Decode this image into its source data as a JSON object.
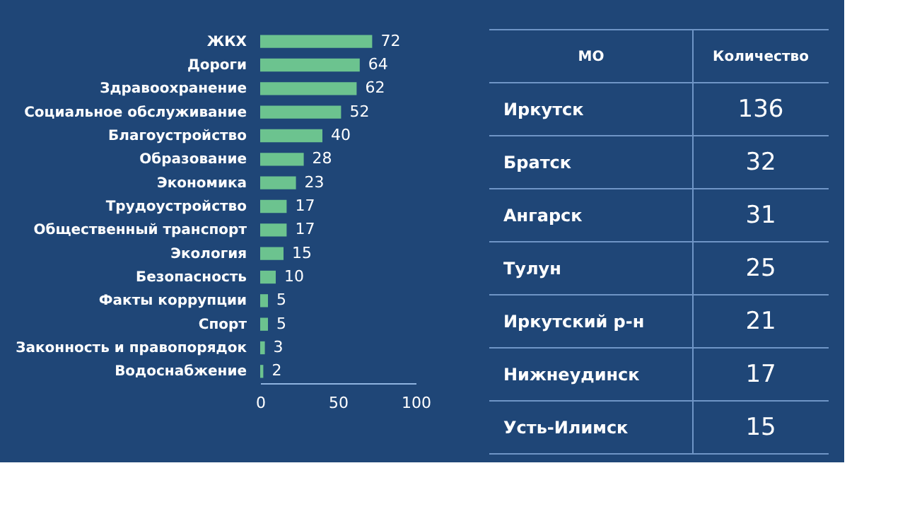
{
  "chart_data": [
    {
      "type": "bar",
      "orientation": "horizontal",
      "categories": [
        "ЖКХ",
        "Дороги",
        "Здравоохранение",
        "Социальное обслуживание",
        "Благоустройство",
        "Образование",
        "Экономика",
        "Трудоустройство",
        "Общественный транспорт",
        "Экология",
        "Безопасность",
        "Факты коррупции",
        "Спорт",
        "Законность и правопорядок",
        "Водоснабжение"
      ],
      "values": [
        72,
        64,
        62,
        52,
        40,
        28,
        23,
        17,
        17,
        15,
        10,
        5,
        5,
        3,
        2
      ],
      "color": "#6cc38f",
      "xlim": [
        0,
        100
      ],
      "xticks": [
        0,
        50,
        100
      ],
      "grid": false,
      "data_labels": true
    },
    {
      "type": "other",
      "xlabel": "МО",
      "ylabel": "Количество",
      "categories": [
        "Иркутск",
        "Братск",
        "Ангарск",
        "Тулун",
        "Иркутский р-н",
        "Нижнеудинск",
        "Усть-Илимск"
      ],
      "values": [
        136,
        32,
        31,
        25,
        21,
        17,
        15
      ],
      "data_labels": true
    }
  ]
}
